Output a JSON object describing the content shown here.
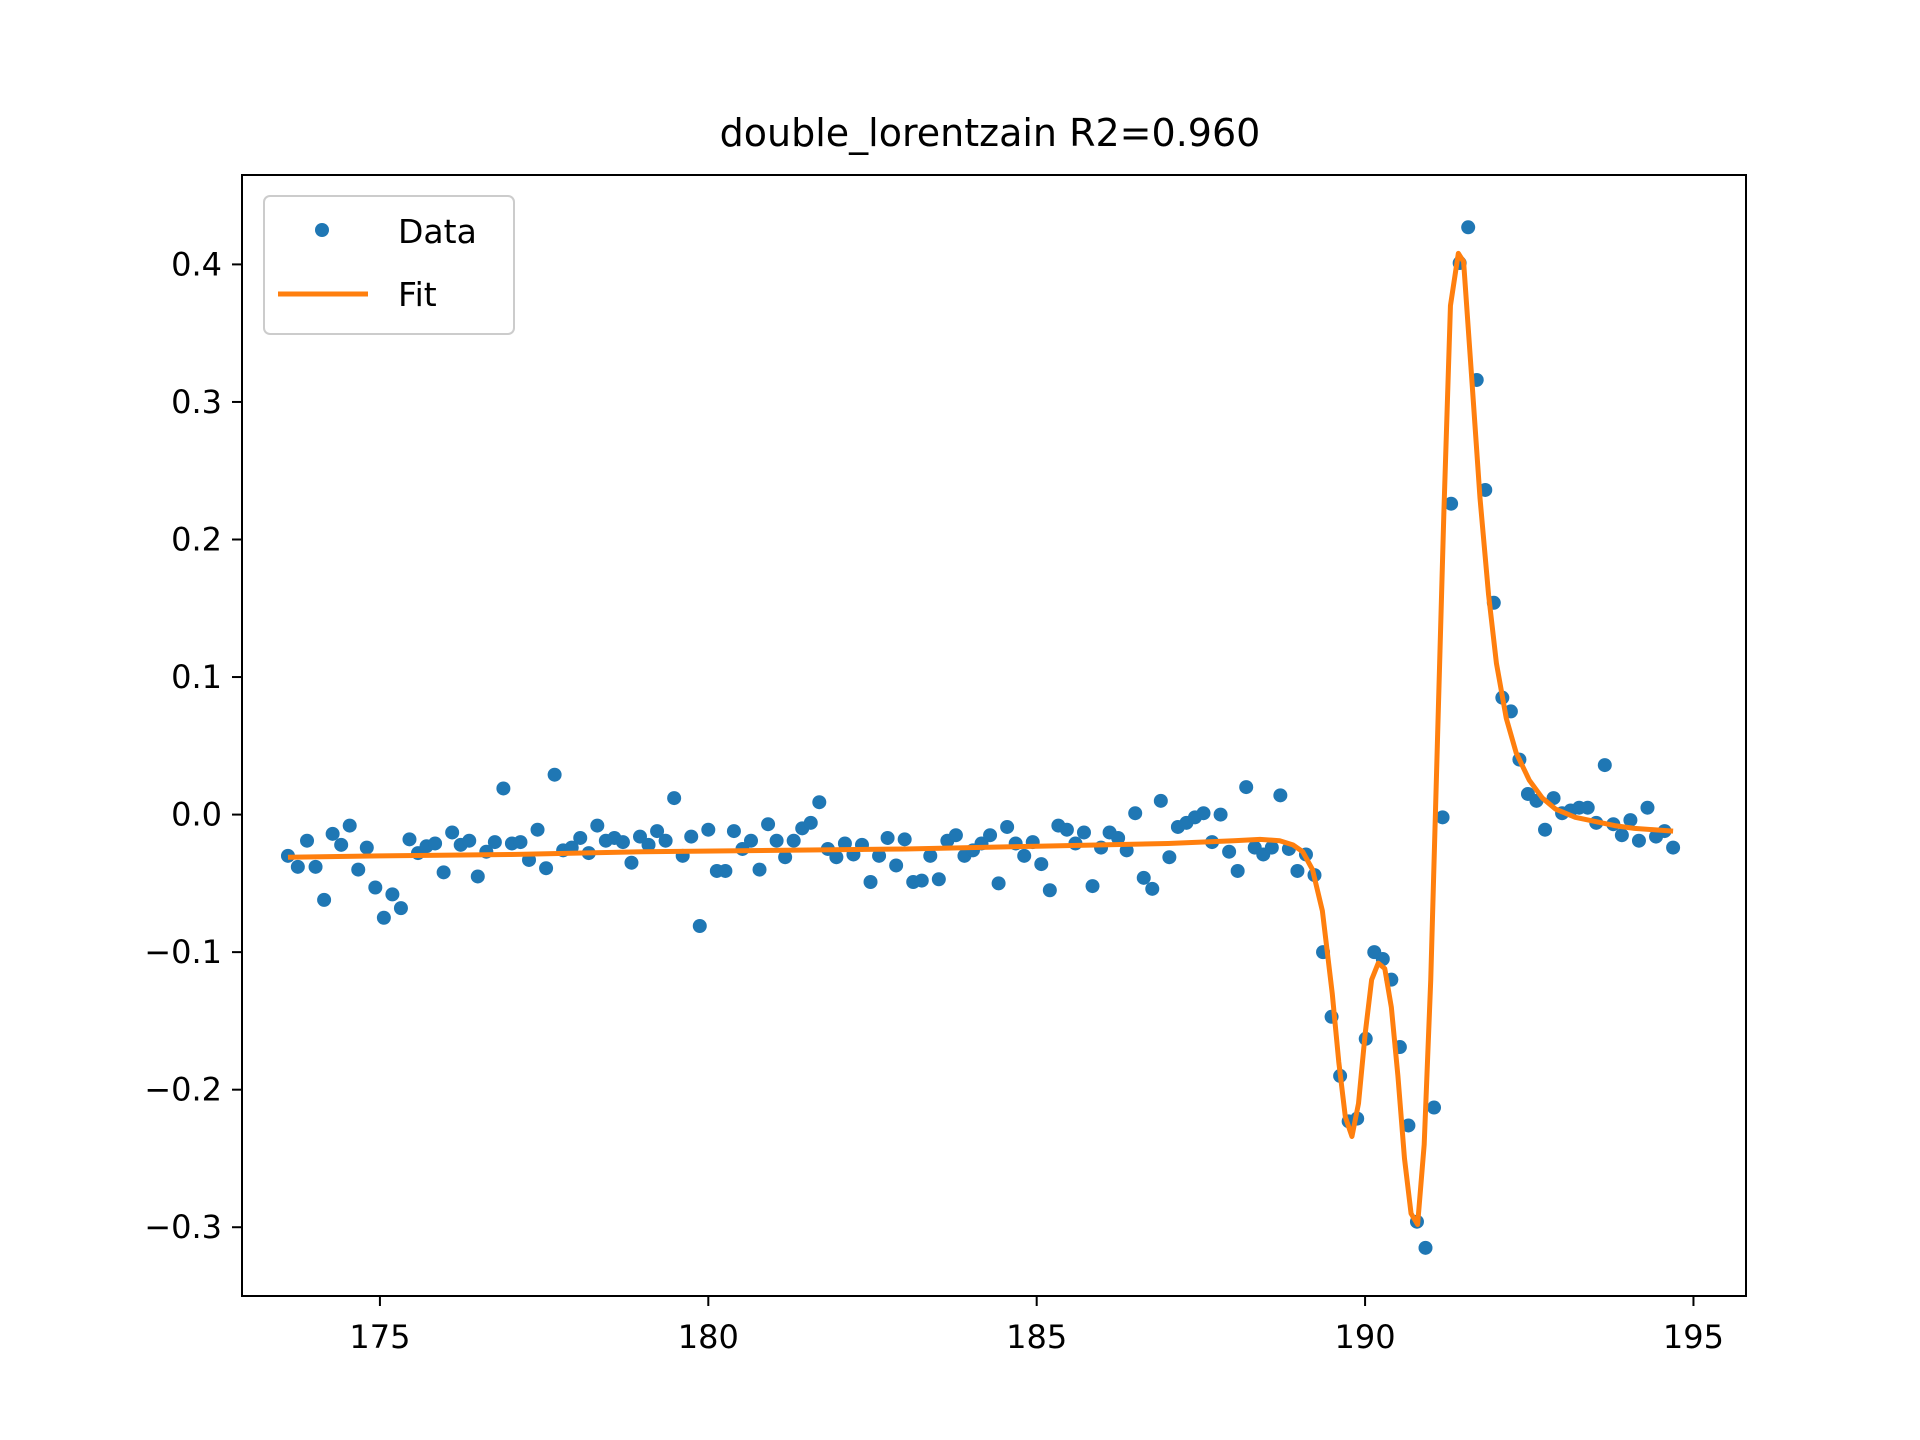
{
  "chart_data": {
    "type": "scatter",
    "title": "double_lorentzain R2=0.960",
    "xlabel": "",
    "ylabel": "",
    "xlim": [
      172.9,
      195.8
    ],
    "ylim": [
      -0.35,
      0.465
    ],
    "xticks": [
      175,
      180,
      185,
      190,
      195
    ],
    "xtick_labels": [
      "175",
      "180",
      "185",
      "190",
      "195"
    ],
    "yticks": [
      -0.3,
      -0.2,
      -0.1,
      0.0,
      0.1,
      0.2,
      0.3,
      0.4
    ],
    "ytick_labels": [
      "−0.3",
      "−0.2",
      "−0.1",
      "0.0",
      "0.1",
      "0.2",
      "0.3",
      "0.4"
    ],
    "grid": false,
    "legend_position": "top-left",
    "colors": {
      "data": "#1f77b4",
      "fit": "#ff7f0e"
    },
    "series": [
      {
        "name": "Data",
        "type": "scatter",
        "x": [
          173.6,
          173.75,
          173.89,
          174.02,
          174.15,
          174.28,
          174.41,
          174.54,
          174.67,
          174.8,
          174.93,
          175.06,
          175.19,
          175.32,
          175.45,
          175.58,
          175.71,
          175.84,
          175.97,
          176.1,
          176.23,
          176.36,
          176.49,
          176.62,
          176.75,
          176.88,
          177.01,
          177.14,
          177.27,
          177.4,
          177.53,
          177.66,
          177.79,
          177.92,
          178.05,
          178.18,
          178.31,
          178.44,
          178.57,
          178.7,
          178.83,
          178.96,
          179.09,
          179.22,
          179.35,
          179.48,
          179.61,
          179.74,
          179.87,
          180.0,
          180.13,
          180.26,
          180.39,
          180.52,
          180.65,
          180.78,
          180.91,
          181.04,
          181.17,
          181.3,
          181.43,
          181.56,
          181.69,
          181.82,
          181.95,
          182.08,
          182.21,
          182.34,
          182.47,
          182.6,
          182.73,
          182.86,
          182.99,
          183.12,
          183.25,
          183.38,
          183.51,
          183.64,
          183.77,
          183.9,
          184.03,
          184.16,
          184.29,
          184.42,
          184.55,
          184.68,
          184.81,
          184.94,
          185.07,
          185.2,
          185.33,
          185.46,
          185.59,
          185.72,
          185.85,
          185.98,
          186.11,
          186.24,
          186.37,
          186.5,
          186.63,
          186.76,
          186.89,
          187.02,
          187.15,
          187.28,
          187.41,
          187.54,
          187.67,
          187.8,
          187.93,
          188.06,
          188.19,
          188.32,
          188.45,
          188.58,
          188.71,
          188.84,
          188.97,
          189.1,
          189.23,
          189.36,
          189.49,
          189.62,
          189.75,
          189.88,
          190.01,
          190.14,
          190.27,
          190.4,
          190.53,
          190.66,
          190.79,
          190.92,
          191.05,
          191.18,
          191.31,
          191.44,
          191.57,
          191.7,
          191.83,
          191.96,
          192.09,
          192.22,
          192.35,
          192.48,
          192.61,
          192.74,
          192.87,
          193.0,
          193.13,
          193.26,
          193.39,
          193.52,
          193.65,
          193.78,
          193.91,
          194.04,
          194.17,
          194.3,
          194.43,
          194.56,
          194.69
        ],
        "y": [
          -0.03,
          -0.038,
          -0.019,
          -0.038,
          -0.062,
          -0.014,
          -0.022,
          -0.008,
          -0.04,
          -0.024,
          -0.053,
          -0.075,
          -0.058,
          -0.068,
          -0.018,
          -0.028,
          -0.023,
          -0.021,
          -0.042,
          -0.013,
          -0.022,
          -0.019,
          -0.045,
          -0.027,
          -0.02,
          0.019,
          -0.021,
          -0.02,
          -0.033,
          -0.011,
          -0.039,
          0.029,
          -0.026,
          -0.024,
          -0.017,
          -0.028,
          -0.008,
          -0.019,
          -0.017,
          -0.02,
          -0.035,
          -0.016,
          -0.022,
          -0.012,
          -0.019,
          0.012,
          -0.03,
          -0.016,
          -0.081,
          -0.011,
          -0.041,
          -0.041,
          -0.012,
          -0.025,
          -0.019,
          -0.04,
          -0.007,
          -0.019,
          -0.031,
          -0.019,
          -0.01,
          -0.006,
          0.009,
          -0.025,
          -0.031,
          -0.021,
          -0.029,
          -0.022,
          -0.049,
          -0.03,
          -0.017,
          -0.037,
          -0.018,
          -0.049,
          -0.048,
          -0.03,
          -0.047,
          -0.019,
          -0.015,
          -0.03,
          -0.026,
          -0.021,
          -0.015,
          -0.05,
          -0.009,
          -0.021,
          -0.03,
          -0.02,
          -0.036,
          -0.055,
          -0.008,
          -0.011,
          -0.021,
          -0.013,
          -0.052,
          -0.024,
          -0.013,
          -0.017,
          -0.026,
          0.001,
          -0.046,
          -0.054,
          0.01,
          -0.031,
          -0.009,
          -0.006,
          -0.002,
          0.001,
          -0.02,
          0.0,
          -0.027,
          -0.041,
          0.02,
          -0.024,
          -0.029,
          -0.024,
          0.014,
          -0.025,
          -0.041,
          -0.029,
          -0.044,
          -0.1,
          -0.147,
          -0.19,
          -0.223,
          -0.221,
          -0.163,
          -0.1,
          -0.105,
          -0.12,
          -0.169,
          -0.226,
          -0.296,
          -0.315,
          -0.213,
          -0.002,
          0.226,
          0.401,
          0.427,
          0.316,
          0.236,
          0.154,
          0.085,
          0.075,
          0.04,
          0.015,
          0.01,
          -0.011,
          0.012,
          0.001,
          0.003,
          0.005,
          0.005,
          -0.006,
          0.036,
          -0.007,
          -0.015,
          -0.004,
          -0.019,
          0.005,
          -0.016,
          -0.012,
          -0.024
        ]
      },
      {
        "name": "Fit",
        "type": "line",
        "x": [
          173.6,
          175.0,
          177.0,
          179.0,
          181.0,
          183.0,
          185.0,
          187.0,
          188.0,
          188.4,
          188.7,
          188.9,
          189.05,
          189.2,
          189.35,
          189.5,
          189.6,
          189.7,
          189.8,
          189.9,
          190.0,
          190.1,
          190.2,
          190.3,
          190.4,
          190.5,
          190.6,
          190.7,
          190.8,
          190.9,
          191.0,
          191.1,
          191.2,
          191.3,
          191.42,
          191.5,
          191.62,
          191.75,
          191.88,
          192.0,
          192.15,
          192.3,
          192.5,
          192.7,
          192.9,
          193.2,
          193.5,
          193.8,
          194.1,
          194.4,
          194.69
        ],
        "y": [
          -0.031,
          -0.03,
          -0.029,
          -0.027,
          -0.026,
          -0.025,
          -0.023,
          -0.021,
          -0.019,
          -0.018,
          -0.019,
          -0.022,
          -0.027,
          -0.04,
          -0.07,
          -0.13,
          -0.18,
          -0.22,
          -0.234,
          -0.21,
          -0.16,
          -0.12,
          -0.108,
          -0.112,
          -0.14,
          -0.19,
          -0.25,
          -0.29,
          -0.298,
          -0.24,
          -0.12,
          0.05,
          0.22,
          0.37,
          0.408,
          0.402,
          0.32,
          0.23,
          0.16,
          0.11,
          0.07,
          0.045,
          0.025,
          0.012,
          0.004,
          -0.002,
          -0.005,
          -0.008,
          -0.01,
          -0.011,
          -0.012
        ]
      }
    ]
  }
}
